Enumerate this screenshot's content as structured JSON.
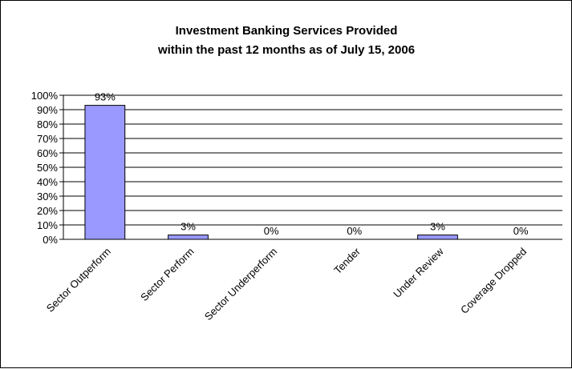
{
  "chart_data": {
    "type": "bar",
    "title_lines": [
      "Investment Banking Services Provided",
      "within the past 12 months as of July 15, 2006"
    ],
    "xlabel": "",
    "ylabel": "",
    "categories": [
      "Sector Outperform",
      "Sector Perform",
      "Sector Underperform",
      "Tender",
      "Under Review",
      "Coverage Dropped"
    ],
    "values": [
      93,
      3,
      0,
      0,
      3,
      0
    ],
    "data_labels": [
      "93%",
      "3%",
      "0%",
      "0%",
      "3%",
      "0%"
    ],
    "y_ticks": [
      "0%",
      "10%",
      "20%",
      "30%",
      "40%",
      "50%",
      "60%",
      "70%",
      "80%",
      "90%",
      "100%"
    ],
    "ylim": [
      0,
      100
    ],
    "grid": true,
    "legend": "none",
    "colors": {
      "bar_fill": "#9999ff",
      "bar_stroke": "#000000",
      "grid": "#000000"
    }
  }
}
